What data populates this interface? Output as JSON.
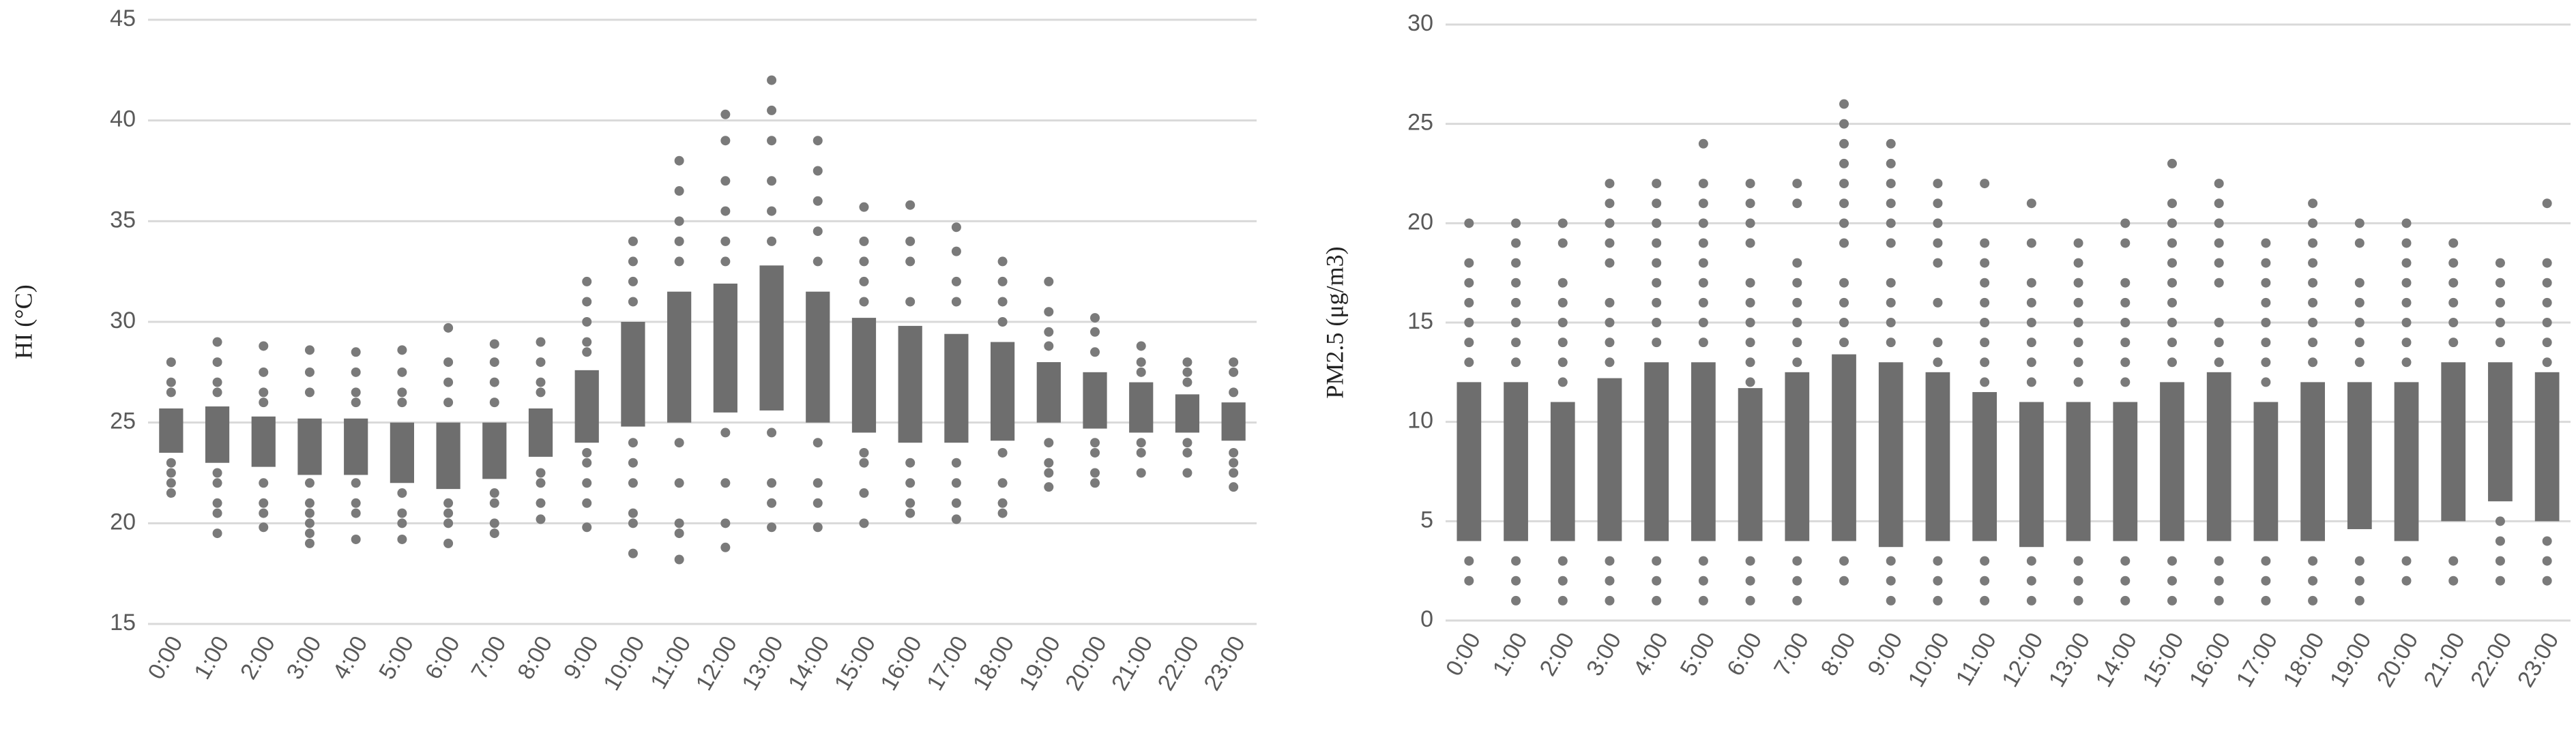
{
  "chart_data": [
    {
      "type": "range",
      "y_label": "HI (°C)",
      "categories": [
        "0:00",
        "1:00",
        "2:00",
        "3:00",
        "4:00",
        "5:00",
        "6:00",
        "7:00",
        "8:00",
        "9:00",
        "10:00",
        "11:00",
        "12:00",
        "13:00",
        "14:00",
        "15:00",
        "16:00",
        "17:00",
        "18:00",
        "19:00",
        "20:00",
        "21:00",
        "22:00",
        "23:00"
      ],
      "low": [
        23.5,
        23,
        22.8,
        22.4,
        22.4,
        22,
        21.7,
        22.2,
        23.3,
        24,
        24.8,
        25,
        25.5,
        25.6,
        25,
        24.5,
        24,
        24,
        24.1,
        25,
        24.7,
        24.5,
        24.5,
        24.1
      ],
      "high": [
        25.7,
        25.8,
        25.3,
        25.2,
        25.2,
        25,
        25,
        25,
        25.7,
        27.6,
        30,
        31.5,
        31.9,
        32.8,
        31.5,
        30.2,
        29.8,
        29.4,
        29,
        28,
        27.5,
        27,
        26.4,
        26
      ],
      "points": [
        [
          28,
          27,
          26.5,
          23,
          22.5,
          22,
          21.5
        ],
        [
          29,
          28,
          27,
          26.5,
          22.5,
          22,
          21,
          20.5,
          19.5
        ],
        [
          28.8,
          27.5,
          26.5,
          26,
          22,
          21,
          20.5,
          19.8
        ],
        [
          28.6,
          27.5,
          26.5,
          22,
          21,
          20.5,
          20,
          19.5,
          19
        ],
        [
          28.5,
          27.5,
          26.5,
          26,
          22,
          21,
          20.5,
          19.2
        ],
        [
          28.6,
          27.5,
          26.5,
          26,
          21.5,
          20.5,
          20,
          19.2
        ],
        [
          29.7,
          28,
          27,
          26,
          21,
          20.5,
          20,
          19
        ],
        [
          28.9,
          28,
          27,
          26,
          21.5,
          21,
          20,
          19.5
        ],
        [
          29,
          28,
          27,
          26.5,
          22.5,
          22,
          21,
          20.2
        ],
        [
          32,
          31,
          30,
          29,
          28.5,
          23.5,
          23,
          22,
          21,
          19.8
        ],
        [
          34,
          33,
          32,
          31,
          24,
          23,
          22,
          20.5,
          20,
          18.5
        ],
        [
          38,
          36.5,
          35,
          34,
          33,
          24,
          22,
          20,
          19.5,
          18.2
        ],
        [
          40.3,
          39,
          37,
          35.5,
          34,
          33,
          24.5,
          22,
          20,
          18.8
        ],
        [
          42,
          40.5,
          39,
          37,
          35.5,
          34,
          24.5,
          22,
          21,
          19.8
        ],
        [
          39,
          37.5,
          36,
          34.5,
          33,
          24,
          22,
          21,
          19.8
        ],
        [
          35.7,
          34,
          33,
          32,
          31,
          23.5,
          23,
          21.5,
          20
        ],
        [
          35.8,
          34,
          33,
          31,
          23,
          22,
          21,
          20.5
        ],
        [
          34.7,
          33.5,
          32,
          31,
          23,
          22,
          21,
          20.2
        ],
        [
          33,
          32,
          31,
          30,
          23.5,
          22,
          21,
          20.5
        ],
        [
          32,
          30.5,
          29.5,
          28.8,
          24,
          23,
          22.5,
          21.8
        ],
        [
          30.2,
          29.5,
          28.5,
          24,
          23.5,
          22.5,
          22
        ],
        [
          28.8,
          28,
          27.5,
          24,
          23.5,
          22.5
        ],
        [
          28,
          27.5,
          27,
          24,
          23.5,
          22.5
        ],
        [
          28,
          27.5,
          26.5,
          23.5,
          23,
          22.5,
          21.8
        ]
      ],
      "color": "#6e6e6e",
      "point_color": "#7a7a7a",
      "ylim": [
        15,
        45
      ],
      "yticks": [
        15,
        20,
        25,
        30,
        35,
        40,
        45
      ],
      "grid": true
    },
    {
      "type": "range",
      "y_label": "PM2.5 (μg/m3)",
      "categories": [
        "0:00",
        "1:00",
        "2:00",
        "3:00",
        "4:00",
        "5:00",
        "6:00",
        "7:00",
        "8:00",
        "9:00",
        "10:00",
        "11:00",
        "12:00",
        "13:00",
        "14:00",
        "15:00",
        "16:00",
        "17:00",
        "18:00",
        "19:00",
        "20:00",
        "21:00",
        "22:00",
        "23:00"
      ],
      "low": [
        4,
        4,
        4,
        4,
        4,
        4,
        4,
        4,
        4,
        3.7,
        4,
        4,
        3.7,
        4,
        4,
        4,
        4,
        4,
        4,
        4.6,
        4,
        5,
        6,
        5
      ],
      "high": [
        12,
        12,
        11,
        12.2,
        13,
        13,
        11.7,
        12.5,
        13.4,
        13,
        12.5,
        11.5,
        11,
        11,
        11,
        12,
        12.5,
        11,
        12,
        12,
        12,
        13,
        13,
        12.5
      ],
      "points": [
        [
          20,
          18,
          17,
          16,
          15,
          14,
          13,
          3,
          2
        ],
        [
          20,
          19,
          18,
          17,
          16,
          15,
          14,
          13,
          3,
          2,
          1
        ],
        [
          20,
          19,
          17,
          16,
          15,
          14,
          13,
          12,
          3,
          2,
          1
        ],
        [
          22,
          21,
          20,
          19,
          18,
          16,
          15,
          14,
          13,
          3,
          2,
          1
        ],
        [
          22,
          21,
          20,
          19,
          18,
          17,
          16,
          15,
          14,
          3,
          2,
          1
        ],
        [
          24,
          22,
          21,
          20,
          19,
          18,
          17,
          16,
          15,
          14,
          3,
          2,
          1
        ],
        [
          22,
          21,
          20,
          19,
          17,
          16,
          15,
          14,
          13,
          12,
          3,
          2,
          1
        ],
        [
          22,
          21,
          18,
          17,
          16,
          15,
          14,
          13,
          3,
          2,
          1
        ],
        [
          26,
          25,
          24,
          23,
          22,
          21,
          20,
          19,
          17,
          16,
          15,
          14,
          3,
          2
        ],
        [
          24,
          23,
          22,
          21,
          20,
          19,
          17,
          16,
          15,
          14,
          3,
          2,
          1
        ],
        [
          22,
          21,
          20,
          19,
          18,
          16,
          14,
          13,
          3,
          2,
          1
        ],
        [
          22,
          19,
          18,
          17,
          16,
          15,
          14,
          13,
          12,
          3,
          2,
          1
        ],
        [
          21,
          19,
          17,
          16,
          15,
          14,
          13,
          12,
          3,
          2,
          1
        ],
        [
          19,
          18,
          17,
          16,
          15,
          14,
          13,
          12,
          3,
          2,
          1
        ],
        [
          20,
          19,
          17,
          16,
          15,
          14,
          13,
          12,
          3,
          2,
          1
        ],
        [
          23,
          21,
          20,
          19,
          18,
          17,
          16,
          15,
          14,
          13,
          3,
          2,
          1
        ],
        [
          22,
          21,
          20,
          19,
          18,
          17,
          15,
          14,
          13,
          3,
          2,
          1
        ],
        [
          19,
          18,
          17,
          16,
          15,
          14,
          13,
          12,
          3,
          2,
          1
        ],
        [
          21,
          20,
          19,
          18,
          17,
          16,
          15,
          14,
          13,
          3,
          2,
          1
        ],
        [
          20,
          19,
          17,
          16,
          15,
          14,
          13,
          3,
          2,
          1
        ],
        [
          20,
          19,
          18,
          17,
          16,
          15,
          14,
          13,
          3,
          2
        ],
        [
          19,
          18,
          17,
          16,
          15,
          14,
          3,
          2
        ],
        [
          18,
          17,
          16,
          15,
          14,
          5,
          4,
          3,
          2
        ],
        [
          21,
          18,
          17,
          16,
          15,
          14,
          13,
          4,
          3,
          2
        ]
      ],
      "color": "#6e6e6e",
      "point_color": "#7a7a7a",
      "ylim": [
        0,
        30
      ],
      "yticks": [
        0,
        5,
        10,
        15,
        20,
        25,
        30
      ],
      "grid": true
    }
  ]
}
